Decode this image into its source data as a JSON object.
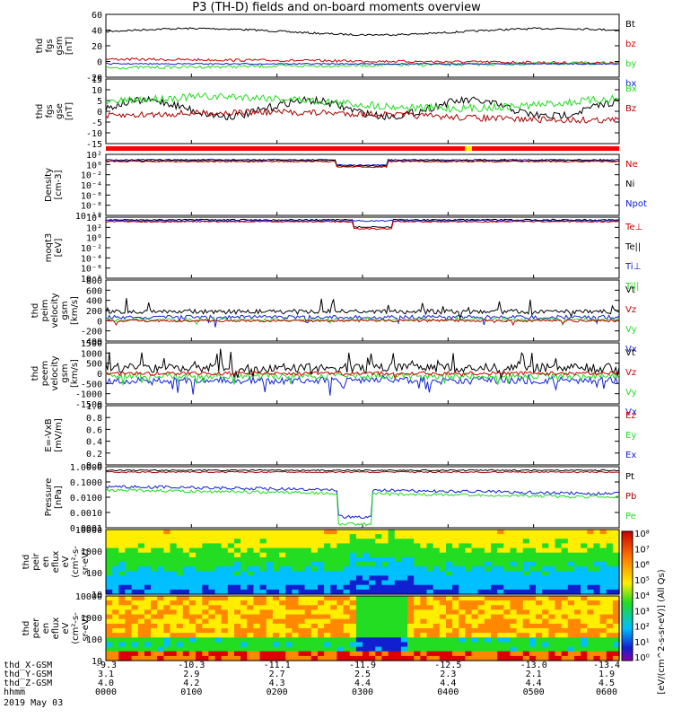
{
  "title": "P3 (TH-D) fields and on-board moments overview",
  "colors": {
    "black": "#000000",
    "red": "#cc0000",
    "green": "#22dd22",
    "blue": "#1020d0",
    "darkred": "#aa0000",
    "yellow": "#ffee00"
  },
  "panels": [
    {
      "id": "fgs-gsm",
      "ylabel": [
        "thd",
        "fgs",
        "gsm",
        "[nT]"
      ],
      "ticks": [
        "60",
        "40",
        "20",
        "0",
        "-20"
      ],
      "legend": [
        {
          "t": "Bt",
          "c": "black"
        },
        {
          "t": "bz",
          "c": "red"
        },
        {
          "t": "by",
          "c": "green"
        },
        {
          "t": "bx",
          "c": "blue"
        }
      ]
    },
    {
      "id": "fgs-gse",
      "ylabel": [
        "thd",
        "fgs",
        "gse",
        "[nT]"
      ],
      "ticks": [
        "15",
        "10",
        "5",
        "0",
        "-5",
        "-10",
        "-15"
      ],
      "legend": [
        {
          "t": "Bx",
          "c": "green"
        },
        {
          "t": "Bz",
          "c": "darkred"
        }
      ]
    },
    {
      "id": "density",
      "ylabel": [
        "Density",
        "[cm-3]"
      ],
      "ticks": [
        "10²",
        "10⁰",
        "10⁻²",
        "10⁻⁴",
        "10⁻⁶",
        "10⁻⁸",
        "10⁻¹⁰"
      ],
      "legend": [
        {
          "t": "Ne",
          "c": "red"
        },
        {
          "t": "Ni",
          "c": "black"
        },
        {
          "t": "Npot",
          "c": "blue"
        }
      ]
    },
    {
      "id": "temp",
      "ylabel": [
        "moqt3",
        "[eV]"
      ],
      "ticks": [
        "10⁴",
        "10²",
        "10⁰",
        "10⁻²",
        "10⁻⁴",
        "10⁻⁶",
        "10⁻⁸"
      ],
      "legend": [
        {
          "t": "Te⊥",
          "c": "red"
        },
        {
          "t": "Te||",
          "c": "black"
        },
        {
          "t": "Ti⊥",
          "c": "blue"
        },
        {
          "t": "Ti||",
          "c": "green"
        }
      ]
    },
    {
      "id": "peim-vel",
      "ylabel": [
        "thd",
        "peim",
        "velocity",
        "gsm",
        "[km/s]"
      ],
      "ticks": [
        "800",
        "600",
        "400",
        "200",
        "0",
        "-200",
        "-400"
      ],
      "legend": [
        {
          "t": "Vt",
          "c": "black"
        },
        {
          "t": "Vz",
          "c": "red"
        },
        {
          "t": "Vy",
          "c": "green"
        },
        {
          "t": "Vx",
          "c": "blue"
        }
      ]
    },
    {
      "id": "peem-vel",
      "ylabel": [
        "thd",
        "peem",
        "velocity",
        "gsm",
        "[km/s]"
      ],
      "ticks": [
        "1500",
        "1000",
        "500",
        "0",
        "-500",
        "-1000",
        "-1500"
      ],
      "legend": [
        {
          "t": "Vt",
          "c": "black"
        },
        {
          "t": "Vz",
          "c": "red"
        },
        {
          "t": "Vy",
          "c": "green"
        },
        {
          "t": "Vx",
          "c": "blue"
        }
      ]
    },
    {
      "id": "efield",
      "ylabel": [
        "E=-VxB",
        "[mV/m]"
      ],
      "ticks": [
        "1.0",
        "0.8",
        "0.6",
        "0.4",
        "0.2",
        "0.0"
      ],
      "legend": [
        {
          "t": "Ez",
          "c": "red"
        },
        {
          "t": "Ey",
          "c": "green"
        },
        {
          "t": "Ex",
          "c": "blue"
        }
      ]
    },
    {
      "id": "pressure",
      "ylabel": [
        "Pressure",
        "[nPa]"
      ],
      "ticks": [
        "1.0000",
        "0.1000",
        "0.0100",
        "0.0010",
        "0.0001"
      ],
      "legend": [
        {
          "t": "Pt",
          "c": "black"
        },
        {
          "t": "Pb",
          "c": "darkred"
        },
        {
          "t": "Pe",
          "c": "green"
        },
        {
          "t": "Pi",
          "c": "blue"
        }
      ]
    },
    {
      "id": "peir",
      "ylabel": [
        "thd",
        "peir",
        "en",
        "eflux",
        "eV",
        "(cm²-s-",
        "sr-eV)"
      ],
      "ticks": [
        "10000",
        "1000",
        "100",
        "10"
      ],
      "legend": []
    },
    {
      "id": "peer",
      "ylabel": [
        "thd",
        "peer",
        "en",
        "eflux",
        "eV",
        "(cm²-s-",
        "sr-eV)"
      ],
      "ticks": [
        "10000",
        "1000",
        "100",
        "10"
      ],
      "legend": []
    }
  ],
  "colorbar": {
    "ticks": [
      "10⁸",
      "10⁷",
      "10⁶",
      "10⁵",
      "10⁴",
      "10³",
      "10²",
      "10¹",
      "10⁰"
    ],
    "label": "[eV/(cm^2-s-sr-eV)] (All Qs)"
  },
  "footer": {
    "rows": [
      {
        "label": "thd_X-GSM",
        "vals": [
          "-9.3",
          "-10.3",
          "-11.1",
          "-11.9",
          "-12.5",
          "-13.0",
          "-13.4"
        ]
      },
      {
        "label": "thd_Y-GSM",
        "vals": [
          "3.1",
          "2.9",
          "2.7",
          "2.5",
          "2.3",
          "2.1",
          "1.9"
        ]
      },
      {
        "label": "thd_Z-GSM",
        "vals": [
          "4.0",
          "4.2",
          "4.3",
          "4.4",
          "4.4",
          "4.4",
          "4.5"
        ]
      },
      {
        "label": "hhmm",
        "vals": [
          "0000",
          "0100",
          "0200",
          "0300",
          "0400",
          "0500",
          "0600"
        ]
      }
    ],
    "date": "2019 May 03"
  },
  "chart_data": {
    "type": "line",
    "title": "P3 (TH-D) fields and on-board moments overview",
    "x": [
      "0000",
      "0100",
      "0200",
      "0300",
      "0400",
      "0500",
      "0600"
    ],
    "series": [
      {
        "name": "Bt",
        "values": [
          37,
          40,
          38,
          36,
          37,
          36,
          34
        ]
      },
      {
        "name": "bz",
        "values": [
          5,
          2,
          0,
          1,
          -1,
          -2,
          -3
        ]
      },
      {
        "name": "by",
        "values": [
          -10,
          -6,
          -8,
          -8,
          -6,
          -4,
          -2
        ]
      },
      {
        "name": "bx",
        "values": [
          -3,
          -2,
          -3,
          -2,
          -4,
          -3,
          -4
        ]
      }
    ],
    "ylim": [
      -20,
      60
    ]
  }
}
